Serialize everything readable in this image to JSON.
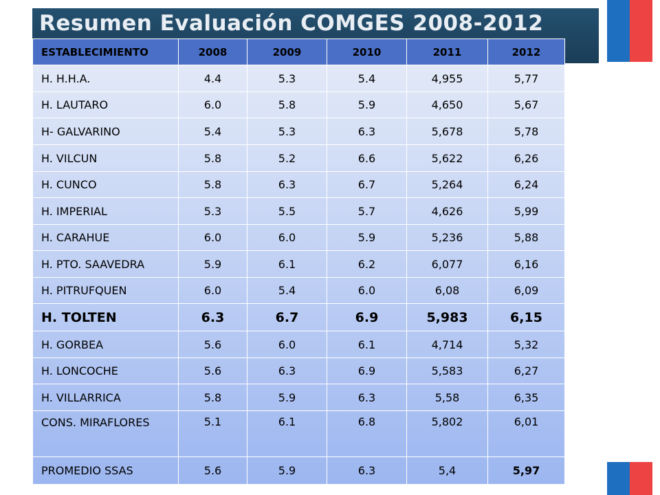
{
  "title": "Resumen Evaluación COMGES 2008-2012",
  "colors": {
    "header_bar": "#1f4a6a",
    "header_row": "#4a6fc6",
    "flag_blue": "#1f6fc0",
    "flag_red": "#ee4343"
  },
  "table": {
    "headers": [
      "ESTABLECIMIENTO",
      "2008",
      "2009",
      "2010",
      "2011",
      "2012"
    ],
    "rows": [
      [
        "H. H.H.A.",
        "4.4",
        "5.3",
        "5.4",
        "4,955",
        "5,77"
      ],
      [
        "H. LAUTARO",
        "6.0",
        "5.8",
        "5.9",
        "4,650",
        "5,67"
      ],
      [
        "H- GALVARINO",
        "5.4",
        "5.3",
        "6.3",
        "5,678",
        "5,78"
      ],
      [
        "H. VILCUN",
        "5.8",
        "5.2",
        "6.6",
        "5,622",
        "6,26"
      ],
      [
        "H. CUNCO",
        "5.8",
        "6.3",
        "6.7",
        "5,264",
        "6,24"
      ],
      [
        "H. IMPERIAL",
        "5.3",
        "5.5",
        "5.7",
        "4,626",
        "5,99"
      ],
      [
        "H. CARAHUE",
        "6.0",
        "6.0",
        "5.9",
        "5,236",
        "5,88"
      ],
      [
        "H. PTO. SAAVEDRA",
        "5.9",
        "6.1",
        "6.2",
        "6,077",
        "6,16"
      ],
      [
        "H. PITRUFQUEN",
        "6.0",
        "5.4",
        "6.0",
        "6,08",
        "6,09"
      ],
      [
        "H. TOLTEN",
        "6.3",
        "6.7",
        "6.9",
        "5,983",
        "6,15"
      ],
      [
        "H. GORBEA",
        "5.6",
        "6.0",
        "6.1",
        "4,714",
        "5,32"
      ],
      [
        "H. LONCOCHE",
        "5.6",
        "6.3",
        "6.9",
        "5,583",
        "6,27"
      ],
      [
        "H. VILLARRICA",
        "5.8",
        "5.9",
        "6.3",
        "5,58",
        "6,35"
      ],
      [
        "CONS. MIRAFLORES",
        "5.1",
        "6.1",
        "6.8",
        "5,802",
        "6,01"
      ],
      [
        "PROMEDIO SSAS",
        "5.6",
        "5.9",
        "6.3",
        "5,4",
        "5,97"
      ]
    ]
  }
}
